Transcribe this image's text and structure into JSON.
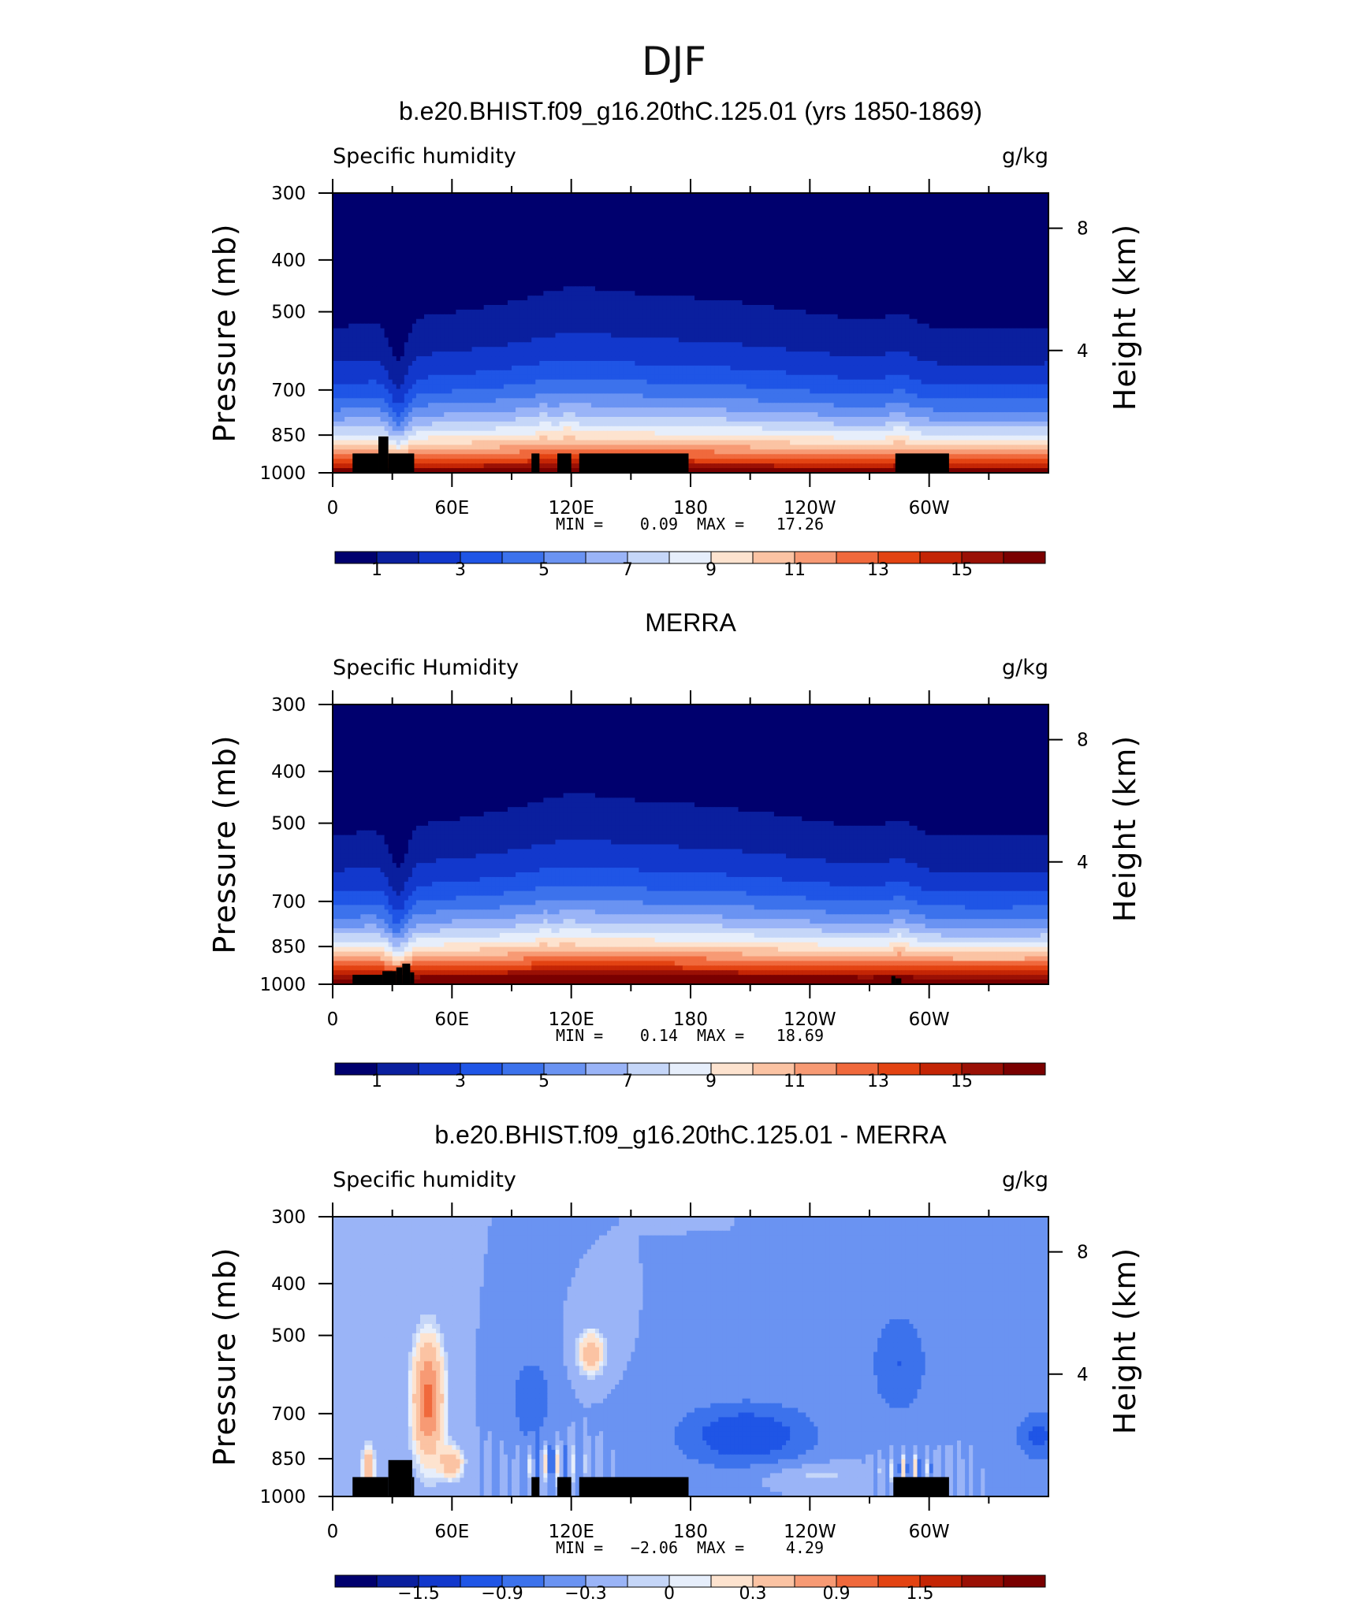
{
  "figure": {
    "title": "DJF"
  },
  "scale_full": [
    "#00006e",
    "#0a1f9e",
    "#1238cc",
    "#1f55e6",
    "#3c72ec",
    "#6a93f2",
    "#9ab4f7",
    "#c5d6f8",
    "#e6eefb",
    "#fde3cf",
    "#fbc3a3",
    "#f79a74",
    "#f0693c",
    "#e34312",
    "#c42505",
    "#9a1005",
    "#7a0000"
  ],
  "scale_diff": [
    "#00006e",
    "#0a1f9e",
    "#1238cc",
    "#1f55e6",
    "#3c72ec",
    "#6a93f2",
    "#9ab4f7",
    "#c5d6f8",
    "#e6eefb",
    "#fde3cf",
    "#fbc3a3",
    "#f79a74",
    "#f0693c",
    "#e34312",
    "#c42505",
    "#9a1005",
    "#7a0000"
  ],
  "chart_data": [
    {
      "type": "heatmap",
      "title": "b.e20.BHIST.f09_g16.20thC.125.01 (yrs 1850-1869)",
      "left_label": "Specific humidity",
      "right_label": "g/kg",
      "ylabel": "Pressure (mb)",
      "ylabel_right": "Height (km)",
      "x_ticks": [
        "0",
        "60E",
        "120E",
        "180",
        "120W",
        "60W"
      ],
      "y_ticks": [
        "300",
        "400",
        "500",
        "700",
        "850",
        "1000"
      ],
      "y_ticks_right": [
        "8",
        "4"
      ],
      "ylim": [
        1000,
        300
      ],
      "x_range_deg": [
        0,
        360
      ],
      "stats": {
        "min_label": "MIN =",
        "min": "0.09",
        "max_label": "MAX =",
        "max": "17.26"
      },
      "colorbar_labels": [
        "1",
        "3",
        "5",
        "7",
        "9",
        "11",
        "13",
        "15"
      ],
      "colorbar_levels": [
        0,
        1,
        2,
        3,
        4,
        5,
        6,
        7,
        8,
        9,
        10,
        11,
        12,
        13,
        14,
        15,
        16
      ],
      "scale": "full",
      "field": {
        "type": "model",
        "surface_q_g_per_kg": 17.26,
        "min_g_per_kg": 0.09
      },
      "terrain": [
        [
          10,
          23,
          920
        ],
        [
          23,
          28,
          855
        ],
        [
          28,
          41,
          920
        ],
        [
          100,
          104,
          920
        ],
        [
          113,
          120,
          920
        ],
        [
          124,
          179,
          920
        ],
        [
          283,
          310,
          920
        ]
      ]
    },
    {
      "type": "heatmap",
      "title": "MERRA",
      "left_label": "Specific Humidity",
      "right_label": "g/kg",
      "ylabel": "Pressure (mb)",
      "ylabel_right": "Height (km)",
      "x_ticks": [
        "0",
        "60E",
        "120E",
        "180",
        "120W",
        "60W"
      ],
      "y_ticks": [
        "300",
        "400",
        "500",
        "700",
        "850",
        "1000"
      ],
      "y_ticks_right": [
        "8",
        "4"
      ],
      "ylim": [
        1000,
        300
      ],
      "x_range_deg": [
        0,
        360
      ],
      "stats": {
        "min_label": "MIN =",
        "min": "0.14",
        "max_label": "MAX =",
        "max": "18.69"
      },
      "colorbar_labels": [
        "1",
        "3",
        "5",
        "7",
        "9",
        "11",
        "13",
        "15"
      ],
      "colorbar_levels": [
        0,
        1,
        2,
        3,
        4,
        5,
        6,
        7,
        8,
        9,
        10,
        11,
        12,
        13,
        14,
        15,
        16
      ],
      "scale": "full",
      "field": {
        "type": "obs",
        "surface_q_g_per_kg": 18.69,
        "min_g_per_kg": 0.14
      },
      "terrain": [
        [
          10,
          25,
          960
        ],
        [
          25,
          32,
          945
        ],
        [
          32,
          35,
          930
        ],
        [
          35,
          39,
          915
        ],
        [
          39,
          41,
          950
        ],
        [
          281,
          283,
          965
        ],
        [
          283,
          286,
          975
        ]
      ]
    },
    {
      "type": "heatmap",
      "title": "b.e20.BHIST.f09_g16.20thC.125.01 - MERRA",
      "left_label": "Specific humidity",
      "right_label": "g/kg",
      "ylabel": "Pressure (mb)",
      "ylabel_right": "Height (km)",
      "x_ticks": [
        "0",
        "60E",
        "120E",
        "180",
        "120W",
        "60W"
      ],
      "y_ticks": [
        "300",
        "400",
        "500",
        "700",
        "850",
        "1000"
      ],
      "y_ticks_right": [
        "8",
        "4"
      ],
      "ylim": [
        1000,
        300
      ],
      "x_range_deg": [
        0,
        360
      ],
      "stats": {
        "min_label": "MIN =",
        "min": "−2.06",
        "max_label": "MAX =",
        "max": "4.29"
      },
      "colorbar_labels": [
        "−1.5",
        "−0.9",
        "−0.3",
        "0",
        "0.3",
        "0.9",
        "1.5"
      ],
      "colorbar_levels": [
        -2.1,
        -1.8,
        -1.5,
        -1.2,
        -0.9,
        -0.6,
        -0.3,
        -0.1,
        0,
        0.1,
        0.3,
        0.6,
        0.9,
        1.2,
        1.5,
        1.8,
        2.1
      ],
      "scale": "diff",
      "field": {
        "type": "diff",
        "min_g_per_kg": -2.06,
        "max_g_per_kg": 4.29
      },
      "terrain": [
        [
          10,
          28,
          920
        ],
        [
          28,
          40,
          855
        ],
        [
          40,
          41,
          920
        ],
        [
          100,
          104,
          920
        ],
        [
          113,
          120,
          920
        ],
        [
          124,
          179,
          920
        ],
        [
          282,
          310,
          920
        ]
      ]
    }
  ]
}
